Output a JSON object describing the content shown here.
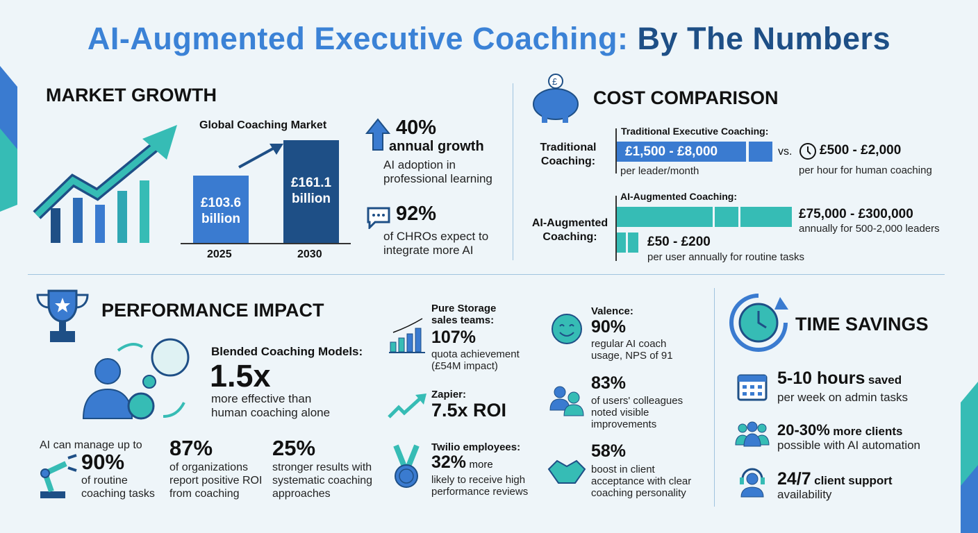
{
  "title": {
    "part1": "AI-Augmented Executive Coaching:",
    "part2": "By The Numbers"
  },
  "colors": {
    "blue": "#3a7bd0",
    "navy": "#1e4f86",
    "teal": "#36bcb5",
    "background": "#eef5f9"
  },
  "market": {
    "heading": "MARKET GROWTH",
    "chart_title": "Global Coaching Market",
    "bars": [
      {
        "label": "2025",
        "value": "£103.6",
        "unit": "billion"
      },
      {
        "label": "2030",
        "value": "£161.1",
        "unit": "billion"
      }
    ],
    "stat1": {
      "value": "40%",
      "sub": "annual growth",
      "desc": "AI adoption in professional learning"
    },
    "stat2": {
      "value": "92%",
      "desc": "of CHROs expect to integrate more AI"
    }
  },
  "cost": {
    "heading": "COST COMPARISON",
    "traditional": {
      "row_label": "Traditional Coaching:",
      "title": "Traditional Executive Coaching:",
      "range": "£1,500 - £8,000",
      "note": "per leader/month",
      "vs": "vs.",
      "hourly": "£500 - £2,000",
      "hourly_note": "per hour for human coaching"
    },
    "ai": {
      "row_label": "AI-Augmented Coaching:",
      "title": "AI-Augmented Coaching:",
      "range1": "£75,000 - £300,000",
      "note1": "annually for 500-2,000 leaders",
      "range2": "£50 - £200",
      "note2": "per user annually for routine tasks"
    }
  },
  "performance": {
    "heading": "PERFORMANCE IMPACT",
    "blended": {
      "label": "Blended Coaching Models:",
      "value": "1.5x",
      "desc": "more effective than human coaching alone"
    },
    "stats": [
      {
        "pre": "AI can manage up to",
        "value": "90%",
        "desc": "of routine coaching tasks"
      },
      {
        "value": "87%",
        "desc": "of organizations report positive ROI from coaching"
      },
      {
        "value": "25%",
        "desc": "stronger results with systematic coaching approaches"
      }
    ],
    "cases": [
      {
        "label": "Pure Storage sales teams:",
        "value": "107%",
        "desc": "quota achievement (£54M impact)"
      },
      {
        "label": "Zapier:",
        "value": "7.5x ROI",
        "desc": ""
      },
      {
        "label": "Twilio employees:",
        "value": "32%",
        "suffix": "more",
        "desc": "likely to receive high performance reviews"
      },
      {
        "label": "Valence:",
        "value": "90%",
        "desc": "regular AI coach usage, NPS of 91"
      },
      {
        "label": "",
        "value": "83%",
        "desc": "of users' colleagues noted visible improvements"
      },
      {
        "label": "",
        "value": "58%",
        "desc": "boost in client acceptance with clear coaching personality"
      }
    ]
  },
  "time": {
    "heading": "TIME SAVINGS",
    "items": [
      {
        "value": "5-10 hours",
        "suffix": "saved",
        "desc": "per week on admin tasks"
      },
      {
        "value": "20-30%",
        "suffix": "more clients",
        "desc": "possible with AI automation"
      },
      {
        "value": "24/7",
        "suffix": "client support",
        "desc": "availability"
      }
    ]
  }
}
